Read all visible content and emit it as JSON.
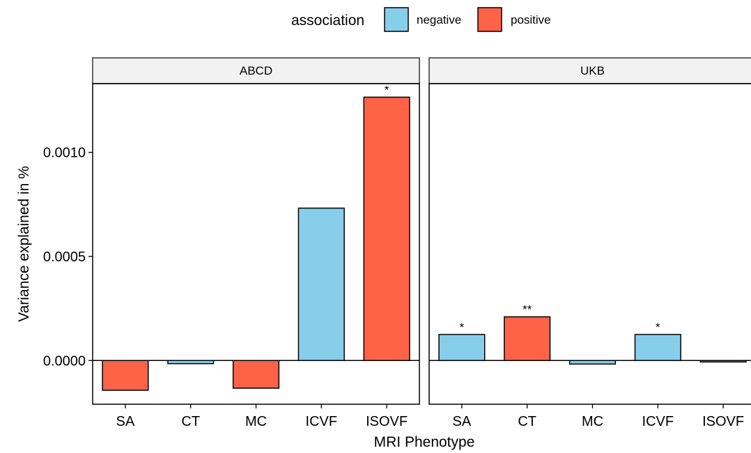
{
  "chart_data": {
    "type": "bar",
    "xlabel": "MRI Phenotype",
    "ylabel": "Variance explained in %",
    "ylim": [
      -0.00021,
      0.00133
    ],
    "yticks": [
      0.0,
      0.0005,
      0.001
    ],
    "ytick_labels": [
      "0.0000",
      "0.0005",
      "0.0010"
    ],
    "categories": [
      "SA",
      "CT",
      "MC",
      "ICVF",
      "ISOVF"
    ],
    "legend": {
      "title": "association",
      "position": "top",
      "entries": [
        {
          "label": "negative",
          "color": "#87CEEB"
        },
        {
          "label": "positive",
          "color": "#FF6347"
        }
      ]
    },
    "panels": [
      {
        "name": "ABCD",
        "bars": [
          {
            "category": "SA",
            "value": -0.000143,
            "association": "positive",
            "sig": ""
          },
          {
            "category": "CT",
            "value": -1.5e-05,
            "association": "negative",
            "sig": ""
          },
          {
            "category": "MC",
            "value": -0.000133,
            "association": "positive",
            "sig": ""
          },
          {
            "category": "ICVF",
            "value": 0.000732,
            "association": "negative",
            "sig": ""
          },
          {
            "category": "ISOVF",
            "value": 0.001265,
            "association": "positive",
            "sig": "*"
          }
        ]
      },
      {
        "name": "UKB",
        "bars": [
          {
            "category": "SA",
            "value": 0.000125,
            "association": "negative",
            "sig": "*"
          },
          {
            "category": "CT",
            "value": 0.00021,
            "association": "positive",
            "sig": "**"
          },
          {
            "category": "MC",
            "value": -1.7e-05,
            "association": "negative",
            "sig": ""
          },
          {
            "category": "ICVF",
            "value": 0.000125,
            "association": "negative",
            "sig": "*"
          },
          {
            "category": "ISOVF",
            "value": -7e-06,
            "association": "positive",
            "sig": ""
          }
        ]
      }
    ]
  }
}
